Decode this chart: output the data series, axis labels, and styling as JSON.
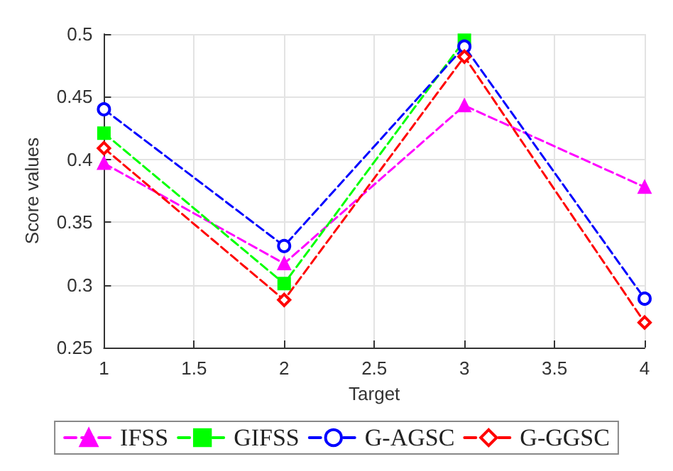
{
  "chart_data": {
    "type": "line",
    "xlabel": "Target",
    "ylabel": "Score values",
    "x": [
      1,
      2,
      3,
      4
    ],
    "xlim": [
      1,
      4
    ],
    "xticks": [
      1,
      1.5,
      2,
      2.5,
      3,
      3.5,
      4
    ],
    "ylim": [
      0.25,
      0.5
    ],
    "yticks": [
      0.25,
      0.3,
      0.35,
      0.4,
      0.45,
      0.5
    ],
    "grid": true,
    "legend": "bottom",
    "line_style": "dashed",
    "series": [
      {
        "name": "IFSS",
        "color": "#ff00ff",
        "marker": "triangle",
        "values": [
          0.397,
          0.317,
          0.443,
          0.378
        ]
      },
      {
        "name": "GIFSS",
        "color": "#00ff00",
        "marker": "square",
        "values": [
          0.421,
          0.301,
          0.495,
          null
        ]
      },
      {
        "name": "G-AGSC",
        "color": "#0000ff",
        "marker": "circle",
        "values": [
          0.44,
          0.331,
          0.49,
          0.289
        ]
      },
      {
        "name": "G-GGSC",
        "color": "#ff0000",
        "marker": "diamond",
        "values": [
          0.409,
          0.288,
          0.482,
          0.27
        ]
      }
    ]
  }
}
